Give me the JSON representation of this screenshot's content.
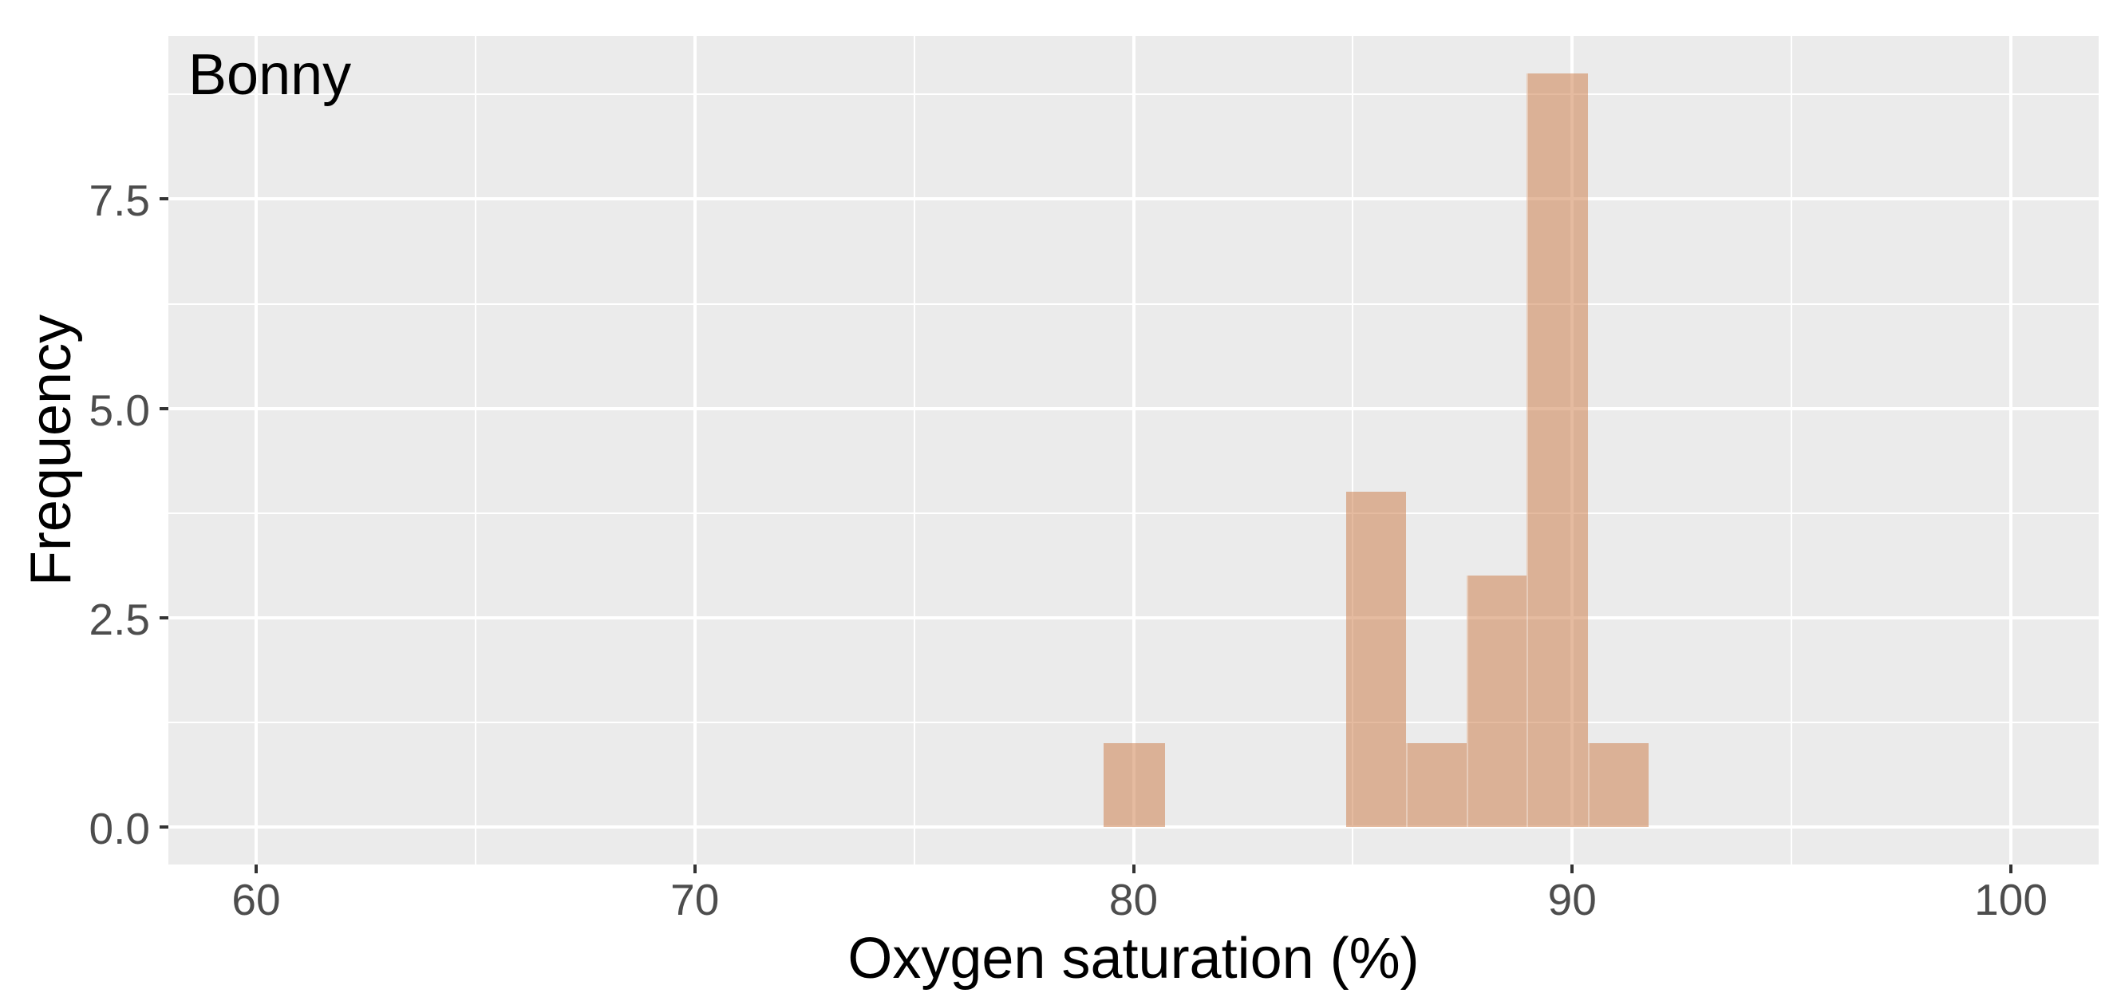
{
  "chart_data": {
    "type": "bar",
    "subtype": "histogram",
    "title": "Bonny",
    "xlabel": "Oxygen saturation (%)",
    "ylabel": "Frequency",
    "xlim": [
      58.0,
      102.0
    ],
    "ylim": [
      -0.45,
      9.45
    ],
    "x_ticks": [
      60,
      70,
      80,
      90,
      100
    ],
    "x_tick_labels": [
      "60",
      "70",
      "80",
      "90",
      "100"
    ],
    "x_minor_ticks": [
      65,
      75,
      85,
      95
    ],
    "y_ticks": [
      0,
      2.5,
      5,
      7.5
    ],
    "y_tick_labels": [
      "0.0",
      "2.5",
      "5.0",
      "7.5"
    ],
    "y_minor_ticks": [
      1.25,
      3.75,
      6.25,
      8.75
    ],
    "bins": [
      {
        "x0": 79.32,
        "x1": 80.71,
        "count": 1
      },
      {
        "x0": 84.85,
        "x1": 86.21,
        "count": 4
      },
      {
        "x0": 86.21,
        "x1": 87.59,
        "count": 1
      },
      {
        "x0": 87.59,
        "x1": 88.96,
        "count": 3
      },
      {
        "x0": 88.96,
        "x1": 90.35,
        "count": 9
      },
      {
        "x0": 90.35,
        "x1": 91.74,
        "count": 1
      }
    ],
    "grid": "on",
    "legend": "none",
    "colors": {
      "bar_fill_rgba": "rgba(203,120,66,0.5)",
      "bar_seam_rgba": "rgba(255,255,255,0.35)",
      "panel_bg": "#EBEBEB",
      "grid_color": "#FFFFFF",
      "tick_label_color": "#4D4D4D",
      "tick_mark_color": "#333333",
      "title_color": "#000000",
      "figure_bg": "#FFFFFF"
    }
  }
}
